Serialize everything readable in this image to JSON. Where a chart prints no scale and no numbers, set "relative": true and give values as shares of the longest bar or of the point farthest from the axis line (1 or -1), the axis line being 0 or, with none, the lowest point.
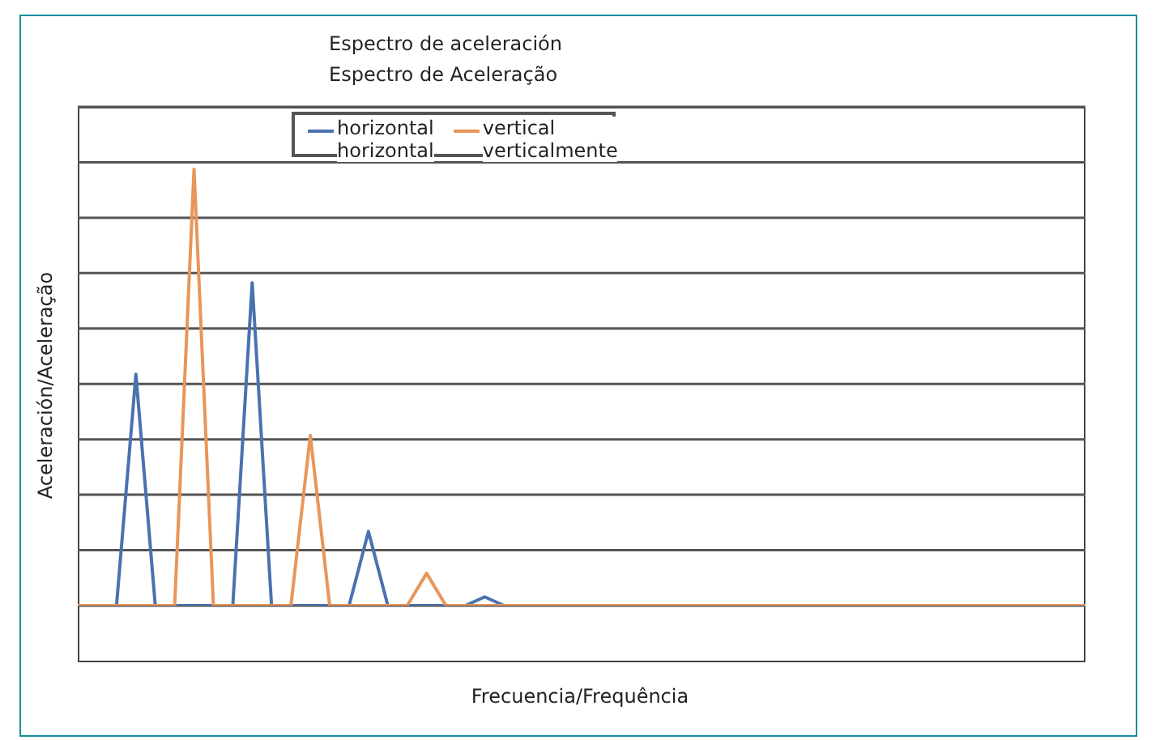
{
  "chart_data": {
    "type": "line",
    "title": "Espectro de aceleración",
    "subtitle": "Espectro de Aceleração",
    "xlabel": "Frecuencia/Frequência",
    "ylabel": "Aceleración/Aceleração",
    "relative": true,
    "grid": "y",
    "legend": "top",
    "marker": "none",
    "line_style": "solid",
    "categories": [
      null,
      null,
      null,
      null,
      null,
      null,
      null,
      null,
      null,
      null,
      null,
      null,
      null,
      null,
      null,
      null,
      null,
      null,
      null,
      null,
      null,
      null,
      null,
      null,
      null,
      null,
      null,
      null,
      null,
      null,
      null,
      null,
      null,
      null,
      null,
      null,
      null,
      null,
      null,
      null,
      null,
      null,
      null,
      null,
      null,
      null,
      null,
      null,
      null,
      null,
      null,
      null,
      null
    ],
    "series": [
      {
        "name": "horizontal\nhorizontal",
        "color": "#4a72b0",
        "values": [
          null,
          null,
          0,
          0.53,
          0,
          0,
          0,
          0,
          0,
          0.74,
          0,
          0,
          0,
          0,
          0,
          0.17,
          0,
          0,
          0,
          0,
          0,
          0.02,
          0,
          null,
          null,
          null,
          null,
          null,
          null,
          null,
          null,
          null,
          null,
          null,
          null,
          null,
          null,
          null,
          null,
          null,
          null,
          null,
          null,
          null,
          null,
          null,
          null,
          null,
          null,
          null,
          null,
          null,
          null
        ]
      },
      {
        "name": "vertical\nverticalmente",
        "color": "#e8965a",
        "values": [
          0,
          0,
          0,
          0,
          0,
          0,
          1,
          0,
          0,
          0,
          0,
          0,
          0.39,
          0,
          0,
          0,
          0,
          0,
          0.074,
          0,
          0,
          0,
          0,
          0,
          0,
          0,
          0,
          0,
          0,
          0,
          0,
          0,
          0,
          0,
          0,
          0,
          0,
          0,
          0,
          0,
          0,
          0,
          0,
          0,
          0,
          0,
          0,
          0,
          0,
          0,
          0,
          0,
          0
        ]
      }
    ]
  }
}
